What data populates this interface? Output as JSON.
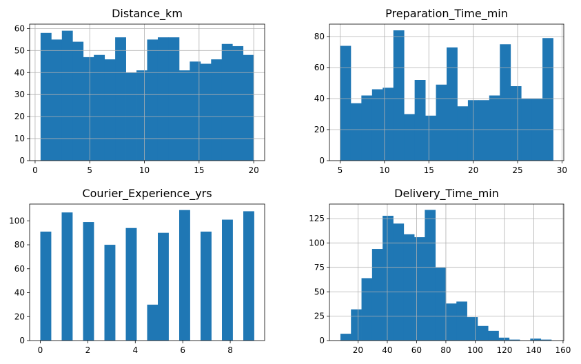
{
  "colors": {
    "bar": "#1f77b4",
    "grid": "#b0b0b0"
  },
  "chart_data": [
    {
      "type": "bar",
      "title": "Distance_km",
      "grid": true,
      "xlim": [
        -0.5,
        21.0
      ],
      "ylim": [
        0,
        62
      ],
      "xticks": [
        0,
        5,
        10,
        15,
        20
      ],
      "yticks": [
        0,
        10,
        20,
        30,
        40,
        50,
        60
      ],
      "bins": {
        "start": 0.5,
        "width": 0.975,
        "values": [
          58,
          55,
          59,
          54,
          47,
          48,
          46,
          56,
          40,
          41,
          55,
          56,
          56,
          41,
          45,
          44,
          46,
          53,
          52,
          48
        ]
      }
    },
    {
      "type": "bar",
      "title": "Preparation_Time_min",
      "grid": true,
      "xlim": [
        3.8,
        30.2
      ],
      "ylim": [
        0,
        88
      ],
      "xticks": [
        5,
        10,
        15,
        20,
        25,
        30
      ],
      "yticks": [
        0,
        20,
        40,
        60,
        80
      ],
      "bins": {
        "start": 5,
        "width": 1.2,
        "values": [
          74,
          37,
          42,
          46,
          47,
          84,
          30,
          52,
          29,
          49,
          73,
          35,
          39,
          39,
          42,
          75,
          48,
          40,
          40,
          79
        ]
      }
    },
    {
      "type": "bar",
      "title": "Courier_Experience_yrs",
      "grid": false,
      "xlim": [
        -0.45,
        9.45
      ],
      "ylim": [
        0,
        114
      ],
      "xticks": [
        0,
        2,
        4,
        6,
        8
      ],
      "yticks": [
        0,
        20,
        40,
        60,
        80,
        100
      ],
      "bins": {
        "start": 0,
        "width": 0.45,
        "values": [
          91,
          0,
          107,
          0,
          99,
          0,
          80,
          0,
          94,
          0,
          30,
          90,
          0,
          109,
          0,
          91,
          0,
          101,
          0,
          108
        ]
      }
    },
    {
      "type": "bar",
      "title": "Delivery_Time_min",
      "grid": true,
      "xlim": [
        0.5,
        160.5
      ],
      "ylim": [
        0,
        140
      ],
      "xticks": [
        20,
        40,
        60,
        80,
        100,
        120,
        140,
        160
      ],
      "yticks": [
        0,
        25,
        50,
        75,
        100,
        125
      ],
      "bins": {
        "start": 8,
        "width": 7.2,
        "values": [
          7,
          32,
          64,
          94,
          128,
          120,
          109,
          106,
          134,
          75,
          38,
          40,
          24,
          15,
          10,
          3,
          1,
          0,
          2,
          1
        ]
      }
    }
  ]
}
